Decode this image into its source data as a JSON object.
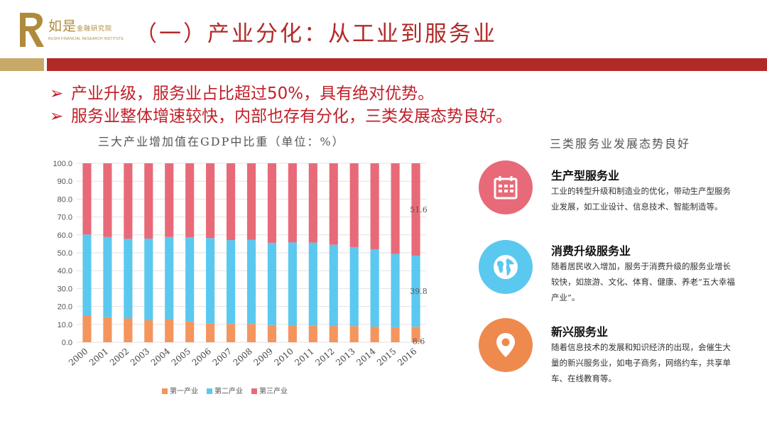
{
  "logo": {
    "name": "如是",
    "name_small": "金融研究院",
    "english": "RUSHI FINANCIAL RESEARCH INSTITUTE"
  },
  "title": "（一）产业分化：从工业到服务业",
  "colors": {
    "accent_red": "#b22a28",
    "gold": "#c9a968",
    "primary": "#f4955e",
    "secondary": "#5bc8ef",
    "tertiary": "#e86a78"
  },
  "bullets": [
    {
      "arrow": "➢",
      "text": "产业升级，服务业占比超过50%，具有绝对优势。"
    },
    {
      "arrow": "➢",
      "text": "服务业整体增速较快，内部也存有分化，三类发展态势良好。"
    }
  ],
  "chart_data": {
    "type": "bar",
    "stacked": true,
    "title": "三大产业增加值在GDP中比重（单位：%）",
    "categories": [
      "2000",
      "2001",
      "2002",
      "2003",
      "2004",
      "2005",
      "2006",
      "2007",
      "2008",
      "2009",
      "2010",
      "2011",
      "2012",
      "2013",
      "2014",
      "2015",
      "2016"
    ],
    "series": [
      {
        "name": "第一产业",
        "color": "#f4955e",
        "values": [
          14.7,
          14.0,
          13.3,
          12.3,
          12.9,
          11.6,
          10.6,
          10.2,
          10.2,
          9.6,
          9.3,
          9.2,
          9.1,
          9.0,
          8.7,
          8.4,
          8.6
        ]
      },
      {
        "name": "第二产业",
        "color": "#5bc8ef",
        "values": [
          45.5,
          44.8,
          44.5,
          45.6,
          45.9,
          47.0,
          47.6,
          46.9,
          47.0,
          46.0,
          46.5,
          46.5,
          45.4,
          44.2,
          43.3,
          40.9,
          39.8
        ]
      },
      {
        "name": "第三产业",
        "color": "#e86a78",
        "values": [
          39.8,
          41.2,
          42.2,
          42.1,
          41.2,
          41.4,
          41.8,
          42.9,
          42.8,
          44.4,
          44.2,
          44.3,
          45.5,
          46.8,
          48.0,
          50.7,
          51.6
        ]
      }
    ],
    "ylim": [
      0,
      100
    ],
    "yticks": [
      "0.0",
      "10.0",
      "20.0",
      "30.0",
      "40.0",
      "50.0",
      "60.0",
      "70.0",
      "80.0",
      "90.0",
      "100.0"
    ],
    "data_labels": [
      "8.6",
      "39.8",
      "51.6"
    ],
    "legend_position": "bottom"
  },
  "right": {
    "title": "三类服务业发展态势良好",
    "services": [
      {
        "icon": "calendar-icon",
        "color": "#e86a78",
        "title": "生产型服务业",
        "desc": "工业的转型升级和制造业的优化，带动生产型服务业发展，如工业设计、信息技术、智能制造等。"
      },
      {
        "icon": "globe-icon",
        "color": "#5bc8ef",
        "title": "消费升级服务业",
        "desc": "随着居民收入增加，服务于消费升级的服务业增长较快，如旅游、文化、体育、健康、养老“五大幸福产业”。"
      },
      {
        "icon": "location-pin-icon",
        "color": "#ee8a4e",
        "title": "新兴服务业",
        "desc": "随着信息技术的发展和知识经济的出现，会催生大量的新兴服务业，如电子商务，网络约车，共享单车、在线教育等。"
      }
    ]
  }
}
